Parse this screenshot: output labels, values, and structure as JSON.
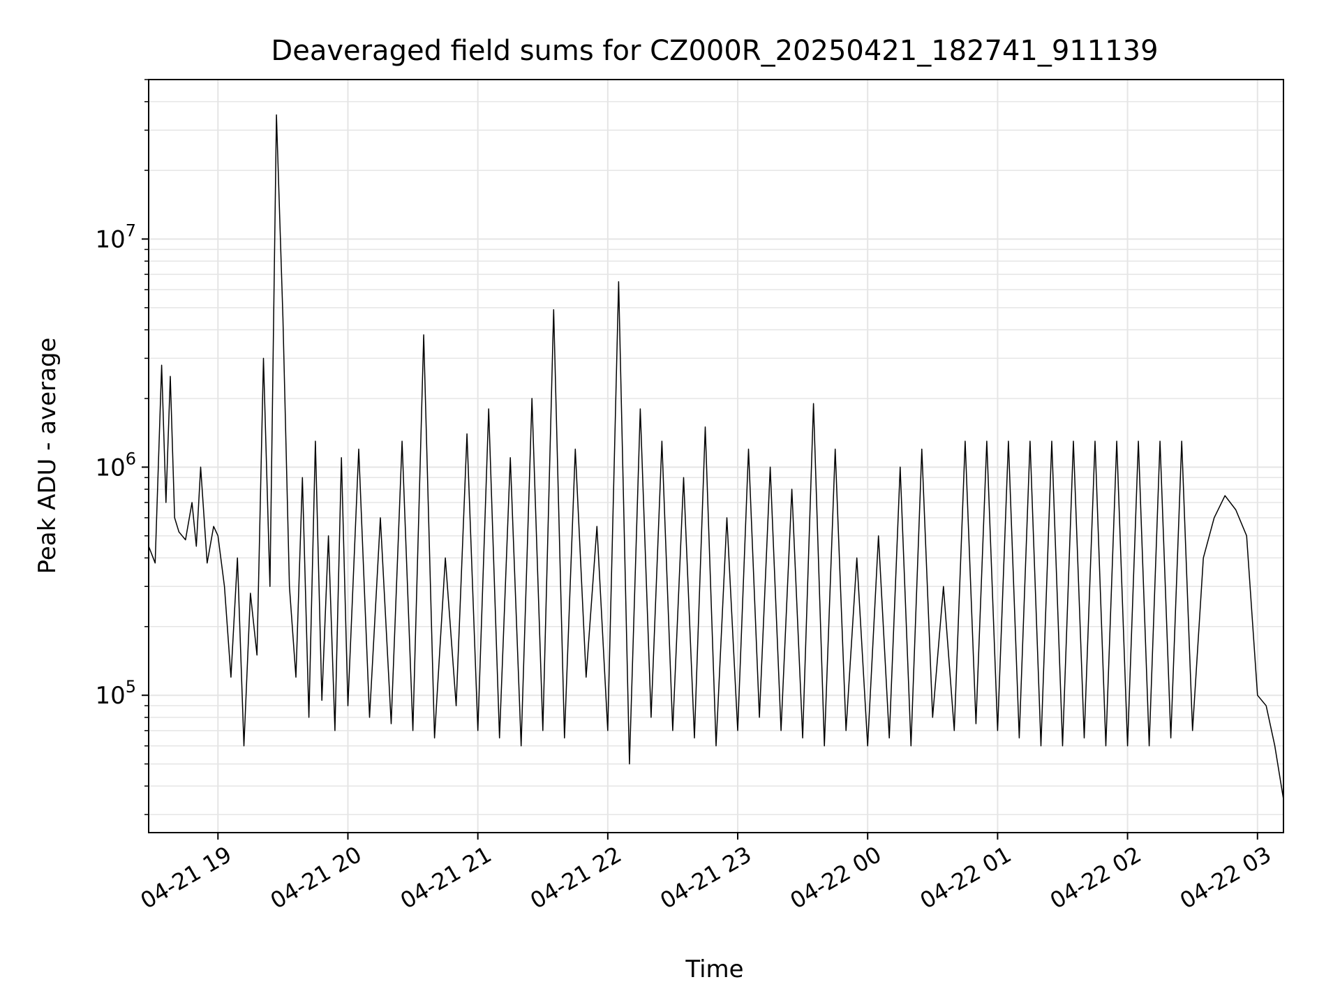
{
  "chart_data": {
    "type": "line",
    "title": "Deaveraged field sums for CZ000R_20250421_182741_911139",
    "xlabel": "Time",
    "ylabel": "Peak ADU - average",
    "yscale": "log",
    "ylim": [
      25000,
      50000000
    ],
    "xlim": [
      "2025-04-21 18:28",
      "2025-04-22 03:12"
    ],
    "grid": true,
    "line_color": "#000000",
    "grid_color": "#e5e5e5",
    "x_ticks": [
      {
        "value": "2025-04-21 19:00",
        "label": "04-21 19"
      },
      {
        "value": "2025-04-21 20:00",
        "label": "04-21 20"
      },
      {
        "value": "2025-04-21 21:00",
        "label": "04-21 21"
      },
      {
        "value": "2025-04-21 22:00",
        "label": "04-21 22"
      },
      {
        "value": "2025-04-21 23:00",
        "label": "04-21 23"
      },
      {
        "value": "2025-04-22 00:00",
        "label": "04-22 00"
      },
      {
        "value": "2025-04-22 01:00",
        "label": "04-22 01"
      },
      {
        "value": "2025-04-22 02:00",
        "label": "04-22 02"
      },
      {
        "value": "2025-04-22 03:00",
        "label": "04-22 03"
      }
    ],
    "y_ticks": [
      {
        "value": 100000,
        "base": "10",
        "exp": "5"
      },
      {
        "value": 1000000,
        "base": "10",
        "exp": "6"
      },
      {
        "value": 10000000,
        "base": "10",
        "exp": "7"
      }
    ],
    "series": [
      {
        "x": [
          "2025-04-21 18:28",
          "2025-04-21 18:31",
          "2025-04-21 18:34",
          "2025-04-21 18:36",
          "2025-04-21 18:38",
          "2025-04-21 18:40",
          "2025-04-21 18:42",
          "2025-04-21 18:45",
          "2025-04-21 18:48",
          "2025-04-21 18:50",
          "2025-04-21 18:52",
          "2025-04-21 18:55",
          "2025-04-21 18:58",
          "2025-04-21 19:00",
          "2025-04-21 19:03",
          "2025-04-21 19:06",
          "2025-04-21 19:09",
          "2025-04-21 19:12",
          "2025-04-21 19:15",
          "2025-04-21 19:18",
          "2025-04-21 19:21",
          "2025-04-21 19:24",
          "2025-04-21 19:27",
          "2025-04-21 19:30",
          "2025-04-21 19:33",
          "2025-04-21 19:36",
          "2025-04-21 19:39",
          "2025-04-21 19:42",
          "2025-04-21 19:45",
          "2025-04-21 19:48",
          "2025-04-21 19:51",
          "2025-04-21 19:54",
          "2025-04-21 19:57",
          "2025-04-21 20:00",
          "2025-04-21 20:05",
          "2025-04-21 20:10",
          "2025-04-21 20:15",
          "2025-04-21 20:20",
          "2025-04-21 20:25",
          "2025-04-21 20:30",
          "2025-04-21 20:35",
          "2025-04-21 20:40",
          "2025-04-21 20:45",
          "2025-04-21 20:50",
          "2025-04-21 20:55",
          "2025-04-21 21:00",
          "2025-04-21 21:05",
          "2025-04-21 21:10",
          "2025-04-21 21:15",
          "2025-04-21 21:20",
          "2025-04-21 21:25",
          "2025-04-21 21:30",
          "2025-04-21 21:35",
          "2025-04-21 21:40",
          "2025-04-21 21:45",
          "2025-04-21 21:50",
          "2025-04-21 21:55",
          "2025-04-21 22:00",
          "2025-04-21 22:05",
          "2025-04-21 22:10",
          "2025-04-21 22:15",
          "2025-04-21 22:20",
          "2025-04-21 22:25",
          "2025-04-21 22:30",
          "2025-04-21 22:35",
          "2025-04-21 22:40",
          "2025-04-21 22:45",
          "2025-04-21 22:50",
          "2025-04-21 22:55",
          "2025-04-21 23:00",
          "2025-04-21 23:05",
          "2025-04-21 23:10",
          "2025-04-21 23:15",
          "2025-04-21 23:20",
          "2025-04-21 23:25",
          "2025-04-21 23:30",
          "2025-04-21 23:35",
          "2025-04-21 23:40",
          "2025-04-21 23:45",
          "2025-04-21 23:50",
          "2025-04-21 23:55",
          "2025-04-22 00:00",
          "2025-04-22 00:05",
          "2025-04-22 00:10",
          "2025-04-22 00:15",
          "2025-04-22 00:20",
          "2025-04-22 00:25",
          "2025-04-22 00:30",
          "2025-04-22 00:35",
          "2025-04-22 00:40",
          "2025-04-22 00:45",
          "2025-04-22 00:50",
          "2025-04-22 00:55",
          "2025-04-22 01:00",
          "2025-04-22 01:05",
          "2025-04-22 01:10",
          "2025-04-22 01:15",
          "2025-04-22 01:20",
          "2025-04-22 01:25",
          "2025-04-22 01:30",
          "2025-04-22 01:35",
          "2025-04-22 01:40",
          "2025-04-22 01:45",
          "2025-04-22 01:50",
          "2025-04-22 01:55",
          "2025-04-22 02:00",
          "2025-04-22 02:05",
          "2025-04-22 02:10",
          "2025-04-22 02:15",
          "2025-04-22 02:20",
          "2025-04-22 02:25",
          "2025-04-22 02:30",
          "2025-04-22 02:35",
          "2025-04-22 02:40",
          "2025-04-22 02:45",
          "2025-04-22 02:50",
          "2025-04-22 02:55",
          "2025-04-22 03:00",
          "2025-04-22 03:04",
          "2025-04-22 03:08",
          "2025-04-22 03:12"
        ],
        "y": [
          450000,
          380000,
          2800000,
          700000,
          2500000,
          600000,
          520000,
          480000,
          700000,
          450000,
          1000000,
          380000,
          550000,
          500000,
          300000,
          120000,
          400000,
          60000,
          280000,
          150000,
          3000000,
          300000,
          35000000,
          4500000,
          300000,
          120000,
          900000,
          80000,
          1300000,
          95000,
          500000,
          70000,
          1100000,
          90000,
          1200000,
          80000,
          600000,
          75000,
          1300000,
          70000,
          3800000,
          65000,
          400000,
          90000,
          1400000,
          70000,
          1800000,
          65000,
          1100000,
          60000,
          2000000,
          70000,
          4900000,
          65000,
          1200000,
          120000,
          550000,
          70000,
          6500000,
          50000,
          1800000,
          80000,
          1300000,
          70000,
          900000,
          65000,
          1500000,
          60000,
          600000,
          70000,
          1200000,
          80000,
          1000000,
          70000,
          800000,
          65000,
          1900000,
          60000,
          1200000,
          70000,
          400000,
          60000,
          500000,
          65000,
          1000000,
          60000,
          1200000,
          80000,
          300000,
          70000,
          1300000,
          75000,
          1300000,
          70000,
          1300000,
          65000,
          1300000,
          60000,
          1300000,
          60000,
          1300000,
          65000,
          1300000,
          60000,
          1300000,
          60000,
          1300000,
          60000,
          1300000,
          65000,
          1300000,
          70000,
          400000,
          600000,
          750000,
          650000,
          500000,
          100000,
          90000,
          60000,
          35000
        ]
      }
    ]
  }
}
